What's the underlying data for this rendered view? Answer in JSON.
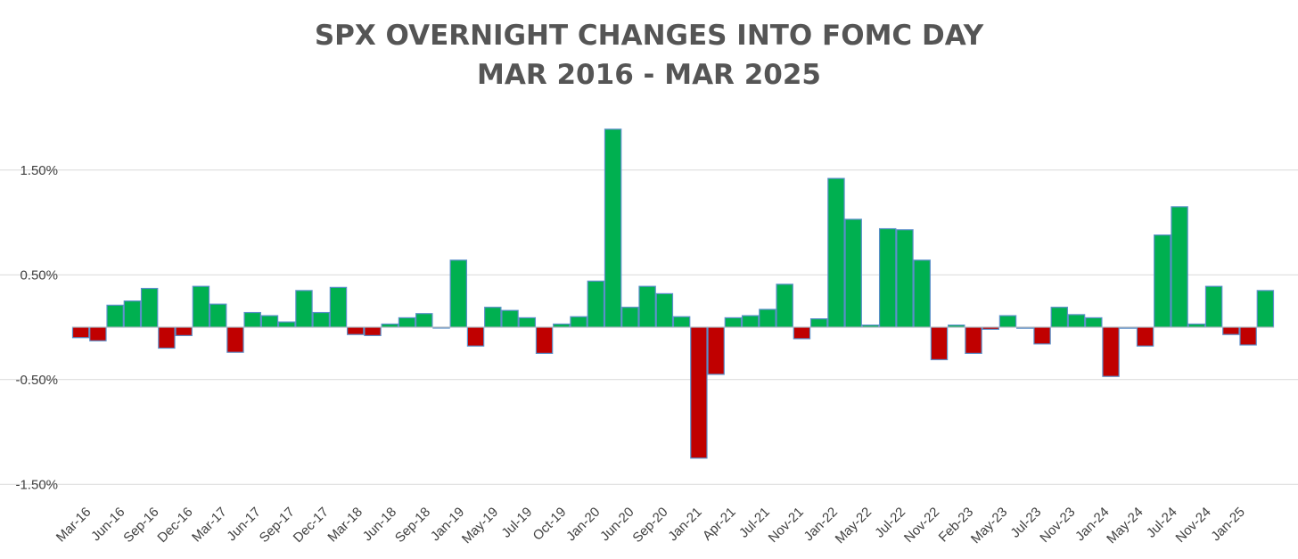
{
  "chart_data": {
    "type": "bar",
    "title": "SPX OVERNIGHT CHANGES INTO FOMC DAY",
    "subtitle": "MAR 2016 - MAR 2025",
    "ylim": [
      -1.5,
      2.0
    ],
    "y_ticks": [
      1.5,
      0.5,
      -0.5,
      -1.5
    ],
    "y_tick_labels": [
      "1.50%",
      "0.50%",
      "-0.50%",
      "-1.50%"
    ],
    "grid": true,
    "colors": {
      "positive": "#00B050",
      "negative": "#C00000",
      "bar_border": "#5B8FC9",
      "grid": "#D9D9D9"
    },
    "x_tick_labels": [
      "Mar-16",
      "Jun-16",
      "Sep-16",
      "Dec-16",
      "Mar-17",
      "Jun-17",
      "Sep-17",
      "Dec-17",
      "Mar-18",
      "Jun-18",
      "Sep-18",
      "Jan-19",
      "May-19",
      "Jul-19",
      "Oct-19",
      "Jan-20",
      "Jun-20",
      "Sep-20",
      "Jan-21",
      "Apr-21",
      "Jul-21",
      "Nov-21",
      "Jan-22",
      "May-22",
      "Jul-22",
      "Nov-22",
      "Feb-23",
      "May-23",
      "Jul-23",
      "Nov-23",
      "Jan-24",
      "May-24",
      "Jul-24",
      "Nov-24",
      "Jan-25"
    ],
    "values": [
      -0.1,
      -0.13,
      0.21,
      0.25,
      0.37,
      -0.2,
      -0.08,
      0.39,
      0.22,
      -0.24,
      0.14,
      0.11,
      0.05,
      0.35,
      0.14,
      0.38,
      -0.07,
      -0.08,
      0.03,
      0.09,
      0.13,
      0.0,
      0.64,
      -0.18,
      0.19,
      0.16,
      0.09,
      -0.25,
      0.03,
      0.1,
      0.44,
      1.89,
      0.19,
      0.39,
      0.32,
      0.1,
      -1.25,
      -0.45,
      0.09,
      0.11,
      0.17,
      0.41,
      -0.11,
      0.08,
      1.42,
      1.03,
      0.02,
      0.94,
      0.93,
      0.64,
      -0.31,
      0.02,
      -0.25,
      -0.02,
      0.11,
      -0.01,
      -0.16,
      0.19,
      0.12,
      0.09,
      -0.47,
      -0.01,
      -0.18,
      0.88,
      1.15,
      0.03,
      0.39,
      -0.07,
      -0.17,
      0.35
    ]
  }
}
